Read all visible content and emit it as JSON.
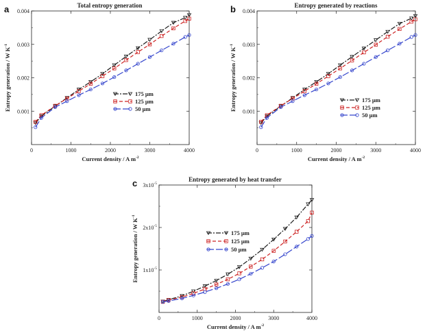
{
  "colors": {
    "s175": "#1a1a1a",
    "s125": "#cc2020",
    "s50": "#3344cc"
  },
  "chart_data": [
    {
      "panel": "a",
      "type": "line",
      "title": "Total entropy generation",
      "xlabel": "Current density / A m",
      "xlabel_sup": "-2",
      "ylabel": "Entropy generation / W K",
      "ylabel_sup": "-1",
      "xlim": [
        0,
        4000
      ],
      "ylim": [
        0,
        0.004
      ],
      "xticks": [
        "0",
        "1000",
        "2000",
        "3000",
        "4000"
      ],
      "yticks": [
        "0.001",
        "0.002",
        "0.003",
        "0.004"
      ],
      "ytick_values": [
        0.001,
        0.002,
        0.003,
        0.004
      ],
      "legend_position": "center-right",
      "series": [
        {
          "name": "175 µm",
          "key": "s175",
          "marker": "tri",
          "x": [
            100,
            250,
            600,
            900,
            1200,
            1500,
            1800,
            2100,
            2400,
            2700,
            3000,
            3300,
            3600,
            3900,
            4000
          ],
          "y": [
            0.00065,
            0.00085,
            0.00115,
            0.0014,
            0.00165,
            0.00188,
            0.00212,
            0.00238,
            0.00264,
            0.00289,
            0.00314,
            0.0034,
            0.00365,
            0.0038,
            0.00388
          ]
        },
        {
          "name": "125 µm",
          "key": "s125",
          "marker": "square",
          "x": [
            100,
            250,
            600,
            900,
            1200,
            1500,
            1800,
            2100,
            2400,
            2700,
            3000,
            3300,
            3600,
            3900,
            4000
          ],
          "y": [
            0.00068,
            0.00088,
            0.00116,
            0.00138,
            0.0016,
            0.00182,
            0.00205,
            0.00228,
            0.00253,
            0.00277,
            0.003,
            0.00325,
            0.00348,
            0.0037,
            0.00377
          ]
        },
        {
          "name": "50 µm",
          "key": "s50",
          "marker": "circle",
          "x": [
            100,
            250,
            600,
            900,
            1200,
            1500,
            1800,
            2100,
            2400,
            2700,
            3000,
            3300,
            3600,
            3900,
            4000
          ],
          "y": [
            0.00052,
            0.0008,
            0.00112,
            0.0013,
            0.00148,
            0.00165,
            0.00183,
            0.00202,
            0.00222,
            0.00242,
            0.00262,
            0.00282,
            0.00302,
            0.00322,
            0.00328
          ]
        }
      ]
    },
    {
      "panel": "b",
      "type": "line",
      "title": "Entropy generated by reactions",
      "xlabel": "Current density / A m",
      "xlabel_sup": "-2",
      "ylabel": "Entropy generation / W K",
      "ylabel_sup": "-1",
      "xlim": [
        0,
        4000
      ],
      "ylim": [
        0,
        0.004
      ],
      "xticks": [
        "0",
        "1000",
        "2000",
        "3000",
        "4000"
      ],
      "yticks": [
        "0.001",
        "0.002",
        "0.003",
        "0.004"
      ],
      "ytick_values": [
        0.001,
        0.002,
        0.003,
        0.004
      ],
      "legend_position": "center-right",
      "series": [
        {
          "name": "175 µm",
          "key": "s175",
          "marker": "tri",
          "x": [
            100,
            250,
            600,
            900,
            1200,
            1500,
            1800,
            2100,
            2400,
            2700,
            3000,
            3300,
            3600,
            3900,
            4000
          ],
          "y": [
            0.00065,
            0.00085,
            0.00115,
            0.0014,
            0.00165,
            0.00188,
            0.00212,
            0.00238,
            0.00263,
            0.00288,
            0.00313,
            0.00338,
            0.00362,
            0.00378,
            0.00385
          ]
        },
        {
          "name": "125 µm",
          "key": "s125",
          "marker": "square",
          "x": [
            100,
            250,
            600,
            900,
            1200,
            1500,
            1800,
            2100,
            2400,
            2700,
            3000,
            3300,
            3600,
            3900,
            4000
          ],
          "y": [
            0.00068,
            0.00088,
            0.00116,
            0.00138,
            0.0016,
            0.00182,
            0.00205,
            0.00228,
            0.00252,
            0.00276,
            0.00299,
            0.00323,
            0.00346,
            0.00368,
            0.00375
          ]
        },
        {
          "name": "50 µm",
          "key": "s50",
          "marker": "circle",
          "x": [
            100,
            250,
            600,
            900,
            1200,
            1500,
            1800,
            2100,
            2400,
            2700,
            3000,
            3300,
            3600,
            3900,
            4000
          ],
          "y": [
            0.00052,
            0.0008,
            0.00112,
            0.0013,
            0.00148,
            0.00165,
            0.00183,
            0.00202,
            0.00222,
            0.00242,
            0.00262,
            0.00282,
            0.00302,
            0.00322,
            0.00328
          ]
        }
      ]
    },
    {
      "panel": "c",
      "type": "line",
      "title": "Entropy generated by heat transfer",
      "xlabel": "Current density / A m",
      "xlabel_sup": "-2",
      "ylabel": "Entropy generation / W K",
      "ylabel_sup": "-1",
      "xlim": [
        0,
        4000
      ],
      "ylim": [
        0,
        3e-05
      ],
      "xticks": [
        "0",
        "1000",
        "2000",
        "3000",
        "4000"
      ],
      "yticks": [
        "1x10",
        "2x10",
        "3x10"
      ],
      "ytick_sup": "-5",
      "ytick_values": [
        1e-05,
        2e-05,
        3e-05
      ],
      "legend_position": "center-left",
      "series": [
        {
          "name": "175 µm",
          "key": "s175",
          "marker": "tri",
          "x": [
            100,
            250,
            600,
            900,
            1200,
            1500,
            1800,
            2100,
            2400,
            2700,
            3000,
            3300,
            3600,
            3900,
            4000
          ],
          "y": [
            2.6e-06,
            3e-06,
            3.9e-06,
            5e-06,
            6.2e-06,
            7.5e-06,
            9e-06,
            1.07e-05,
            1.27e-05,
            1.48e-05,
            1.72e-05,
            1.97e-05,
            2.24e-05,
            2.55e-05,
            2.65e-05
          ]
        },
        {
          "name": "125 µm",
          "key": "s125",
          "marker": "square",
          "x": [
            100,
            250,
            600,
            900,
            1200,
            1500,
            1800,
            2100,
            2400,
            2700,
            3000,
            3300,
            3600,
            3900,
            4000
          ],
          "y": [
            2.5e-06,
            2.9e-06,
            3.6e-06,
            4.5e-06,
            5.5e-06,
            6.6e-06,
            7.8e-06,
            9.2e-06,
            1.08e-05,
            1.25e-05,
            1.45e-05,
            1.67e-05,
            1.9e-05,
            2.15e-05,
            2.35e-05
          ]
        },
        {
          "name": "50 µm",
          "key": "s50",
          "marker": "circle",
          "x": [
            100,
            250,
            600,
            900,
            1200,
            1500,
            1800,
            2100,
            2400,
            2700,
            3000,
            3300,
            3600,
            3900,
            4000
          ],
          "y": [
            2.5e-06,
            2.7e-06,
            3.3e-06,
            4e-06,
            4.8e-06,
            5.7e-06,
            6.7e-06,
            7.8e-06,
            9.1e-06,
            1.05e-05,
            1.2e-05,
            1.37e-05,
            1.55e-05,
            1.73e-05,
            1.8e-05
          ]
        }
      ]
    }
  ]
}
